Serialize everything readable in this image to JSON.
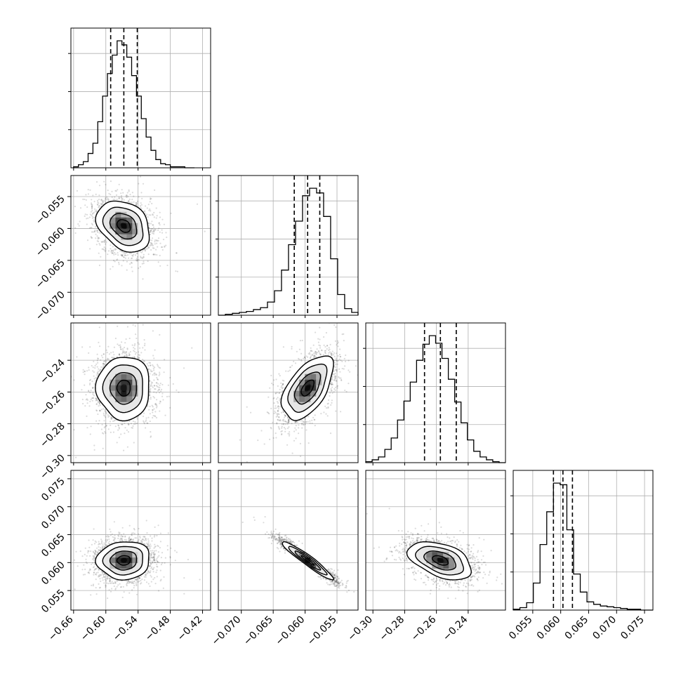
{
  "chart_data": {
    "type": "corner",
    "n_params": 4,
    "params": [
      {
        "range": [
          -0.665,
          -0.405
        ],
        "ticks": [
          -0.66,
          -0.6,
          -0.54,
          -0.48,
          -0.42
        ],
        "tick_labels": [
          "−0.66",
          "−0.60",
          "−0.54",
          "−0.48",
          "−0.42"
        ],
        "quantiles": [
          -0.591,
          -0.5665,
          -0.5415
        ],
        "hist": {
          "type": "histogram",
          "edges": [
            -0.66,
            -0.651,
            -0.642,
            -0.633,
            -0.624,
            -0.615,
            -0.606,
            -0.597,
            -0.588,
            -0.579,
            -0.57,
            -0.561,
            -0.552,
            -0.543,
            -0.534,
            -0.525,
            -0.516,
            -0.507,
            -0.498,
            -0.489,
            -0.48,
            -0.471,
            -0.462,
            -0.453,
            -0.444,
            -0.435
          ],
          "counts": [
            1,
            3,
            6,
            14,
            24,
            45,
            70,
            92,
            110,
            124,
            120,
            108,
            90,
            70,
            48,
            30,
            17,
            8,
            4,
            3,
            1,
            1,
            1,
            0,
            0
          ]
        }
      },
      {
        "range": [
          -0.0736,
          -0.0517
        ],
        "ticks": [
          -0.055,
          -0.06,
          -0.065,
          -0.07
        ],
        "tick_labels": [
          "−0.055",
          "−0.060",
          "−0.065",
          "−0.070"
        ],
        "bottom_ticks": [
          -0.07,
          -0.065,
          -0.06,
          -0.055
        ],
        "bottom_tick_labels": [
          "−0.070",
          "−0.065",
          "−0.060",
          "−0.055"
        ],
        "quantiles": [
          -0.0617,
          -0.0596,
          -0.0577
        ],
        "hist": {
          "type": "histogram",
          "edges": [
            -0.0736,
            -0.0725,
            -0.0714,
            -0.0703,
            -0.0692,
            -0.0681,
            -0.067,
            -0.0659,
            -0.0648,
            -0.0637,
            -0.0626,
            -0.0615,
            -0.0604,
            -0.0593,
            -0.0582,
            -0.0571,
            -0.056,
            -0.0549,
            -0.0538,
            -0.0527,
            -0.0517
          ],
          "counts": [
            0,
            1,
            2,
            3,
            4,
            6,
            8,
            14,
            26,
            48,
            75,
            100,
            127,
            135,
            130,
            105,
            60,
            22,
            7,
            3
          ]
        }
      },
      {
        "range": [
          -0.3045,
          -0.2165
        ],
        "ticks": [
          -0.24,
          -0.26,
          -0.28,
          -0.3
        ],
        "tick_labels": [
          "−0.24",
          "−0.26",
          "−0.28",
          "−0.30"
        ],
        "bottom_ticks": [
          -0.3,
          -0.28,
          -0.26,
          -0.24
        ],
        "bottom_tick_labels": [
          "−0.30",
          "−0.28",
          "−0.26",
          "−0.24"
        ],
        "quantiles": [
          -0.2675,
          -0.2575,
          -0.2475
        ],
        "hist": {
          "type": "histogram",
          "edges": [
            -0.3045,
            -0.3005,
            -0.2965,
            -0.2925,
            -0.2885,
            -0.2845,
            -0.2805,
            -0.2765,
            -0.2725,
            -0.2685,
            -0.2645,
            -0.2605,
            -0.2565,
            -0.2525,
            -0.2485,
            -0.2445,
            -0.2405,
            -0.2365,
            -0.2325,
            -0.2285,
            -0.2245,
            -0.2205,
            -0.2165
          ],
          "counts": [
            1,
            3,
            6,
            14,
            26,
            45,
            65,
            85,
            108,
            125,
            134,
            126,
            110,
            88,
            64,
            42,
            24,
            12,
            6,
            3,
            1,
            0
          ]
        }
      },
      {
        "range": [
          0.0515,
          0.0765
        ],
        "ticks": [
          0.075,
          0.07,
          0.065,
          0.06,
          0.055
        ],
        "tick_labels": [
          "0.075",
          "0.070",
          "0.065",
          "0.060",
          "0.055"
        ],
        "bottom_ticks": [
          0.055,
          0.06,
          0.065,
          0.07,
          0.075
        ],
        "bottom_tick_labels": [
          "0.055",
          "0.060",
          "0.065",
          "0.070",
          "0.075"
        ],
        "quantiles": [
          0.0587,
          0.0604,
          0.0621
        ],
        "hist": {
          "type": "histogram",
          "edges": [
            0.0515,
            0.0527,
            0.0539,
            0.0551,
            0.0563,
            0.0575,
            0.0587,
            0.0599,
            0.0611,
            0.0623,
            0.0635,
            0.0647,
            0.0659,
            0.0671,
            0.0683,
            0.0695,
            0.0707,
            0.0719,
            0.0731,
            0.0743,
            0.0755,
            0.0765
          ],
          "counts": [
            1,
            3,
            9,
            33,
            80,
            120,
            155,
            153,
            98,
            44,
            22,
            10,
            7,
            5,
            4,
            3,
            2,
            1,
            1,
            0,
            0
          ]
        }
      }
    ],
    "pairs": [
      {
        "type": "scatter",
        "row": 1,
        "col": 0,
        "corr": -0.3
      },
      {
        "type": "scatter",
        "row": 2,
        "col": 0,
        "corr": 0.0
      },
      {
        "type": "scatter",
        "row": 2,
        "col": 1,
        "corr": 0.55
      },
      {
        "type": "scatter",
        "row": 3,
        "col": 0,
        "corr": 0.05
      },
      {
        "type": "scatter",
        "row": 3,
        "col": 1,
        "corr": -0.95
      },
      {
        "type": "scatter",
        "row": 3,
        "col": 2,
        "corr": -0.45
      }
    ],
    "grid": true,
    "contour_levels_sigma": [
      0.5,
      1.0,
      1.5,
      2.0
    ]
  }
}
